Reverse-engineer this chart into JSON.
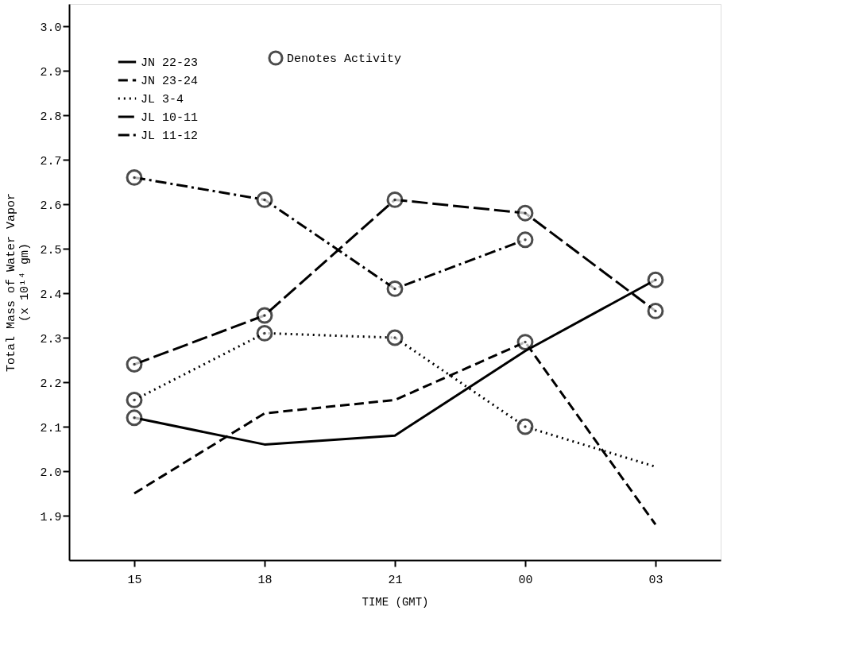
{
  "chart_data": {
    "type": "line",
    "xlabel": "TIME (GMT)",
    "ylabel": [
      "Total Mass of Water Vapor",
      "(x 10¹⁴ gm)"
    ],
    "categories": [
      "15",
      "18",
      "21",
      "00",
      "03"
    ],
    "ylim": [
      1.8,
      3.05
    ],
    "yticks": [
      {
        "value": 1.9,
        "label": "1.9"
      },
      {
        "value": 2.0,
        "label": "2.0"
      },
      {
        "value": 2.1,
        "label": "2.1"
      },
      {
        "value": 2.2,
        "label": "2.2"
      },
      {
        "value": 2.3,
        "label": "2.3"
      },
      {
        "value": 2.4,
        "label": "2.4"
      },
      {
        "value": 2.5,
        "label": "2.5"
      },
      {
        "value": 2.6,
        "label": "2.6"
      },
      {
        "value": 2.7,
        "label": "2.7"
      },
      {
        "value": 2.8,
        "label": "2.8"
      },
      {
        "value": 2.9,
        "label": "2.9"
      },
      {
        "value": 3.0,
        "label": "3.0"
      }
    ],
    "grid": false,
    "legend": "top left",
    "series": [
      {
        "name": "JN 22-23",
        "color": "#000000",
        "line_style": "solid",
        "values": [
          2.12,
          2.06,
          2.08,
          2.27,
          2.43
        ]
      },
      {
        "name": "JN 23-24",
        "color": "#000000",
        "line_style": "dashed",
        "values": [
          1.95,
          2.13,
          2.16,
          2.29,
          1.88
        ]
      },
      {
        "name": "JL 3-4",
        "color": "#000000",
        "line_style": "dotted",
        "values": [
          2.16,
          2.31,
          2.3,
          2.1,
          2.01
        ]
      },
      {
        "name": "JL 10-11",
        "color": "#000000",
        "line_style": "longdash",
        "values": [
          2.24,
          2.35,
          2.61,
          2.58,
          2.36
        ]
      },
      {
        "name": "JL 11-12",
        "color": "#000000",
        "line_style": "dashdot",
        "values": [
          2.66,
          2.61,
          2.41,
          2.52,
          null
        ]
      },
      {
        "name": "Denotes Activity",
        "type": "scatter",
        "marker": "circle",
        "color": "#000000",
        "x": [
          "15",
          "03",
          "00",
          "15",
          "18",
          "21",
          "00",
          "15",
          "18",
          "21",
          "00",
          "03",
          "15",
          "18",
          "21",
          "00"
        ],
        "values": [
          2.12,
          2.43,
          2.29,
          2.16,
          2.31,
          2.3,
          2.1,
          2.24,
          2.35,
          2.61,
          2.58,
          2.36,
          2.66,
          2.61,
          2.41,
          2.52
        ]
      }
    ]
  }
}
